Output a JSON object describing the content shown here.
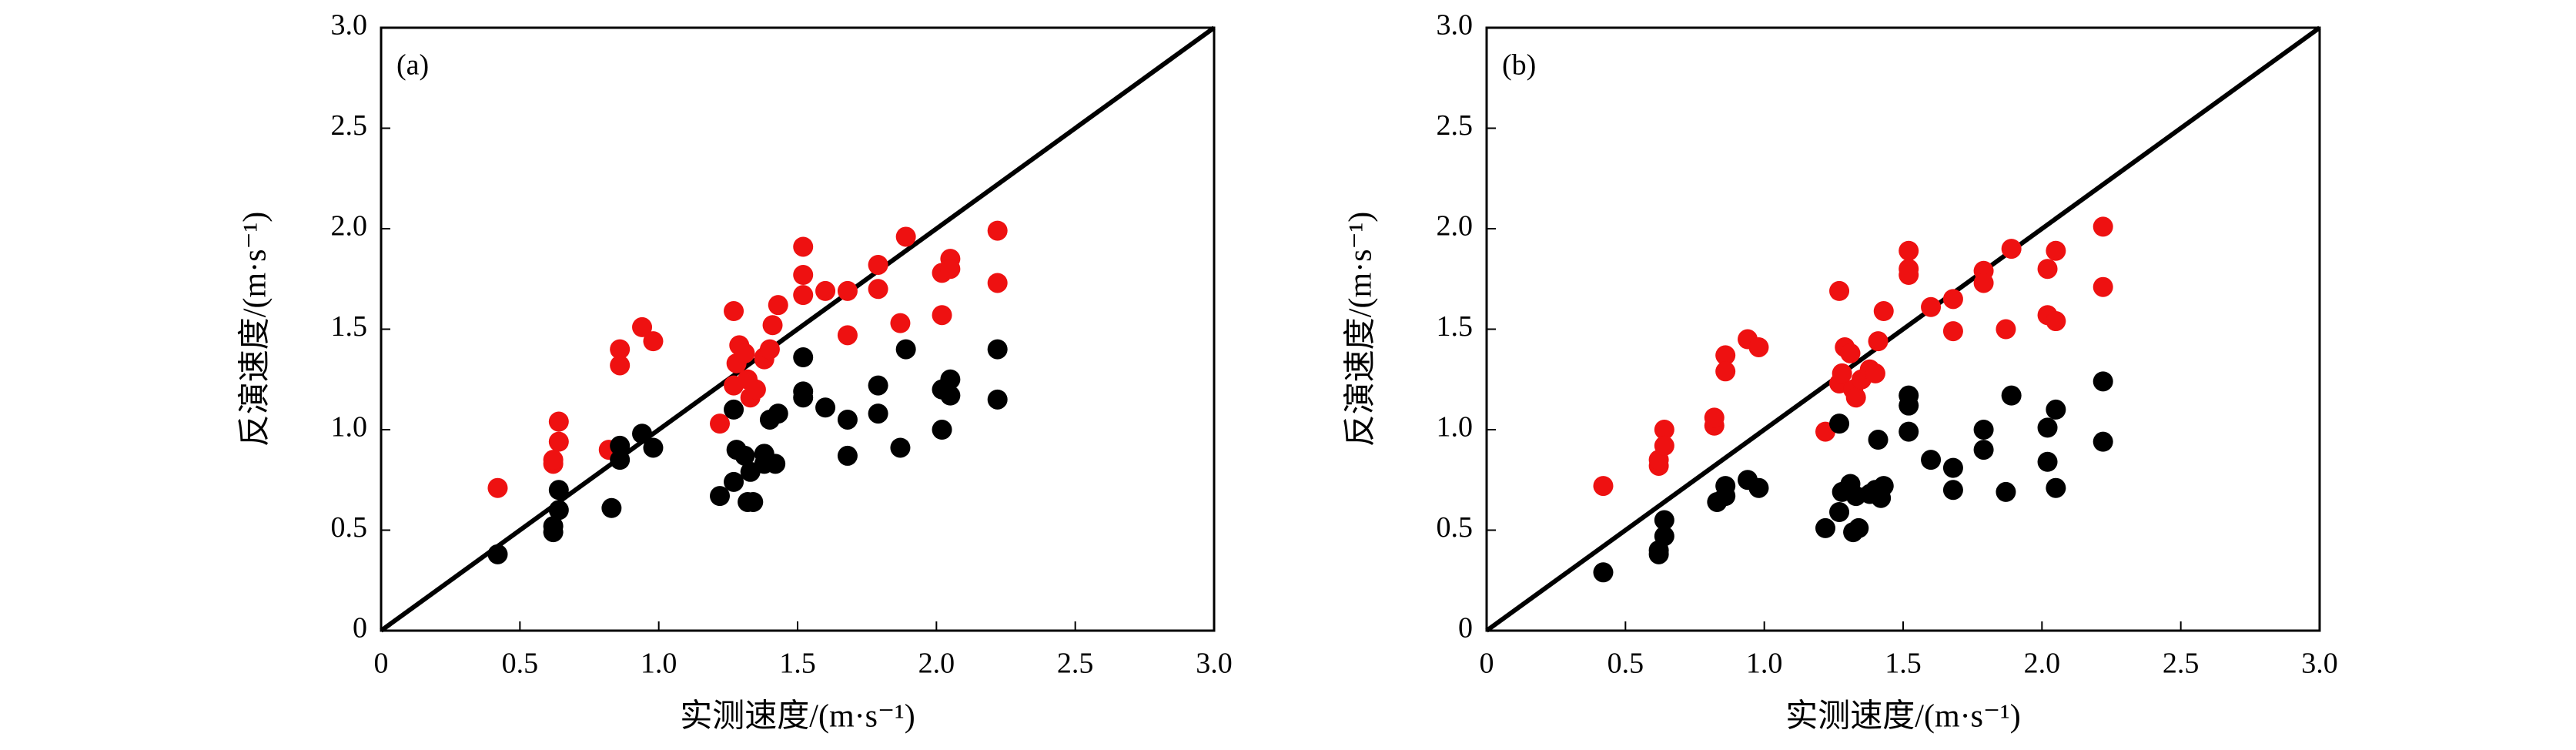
{
  "chart_data": [
    {
      "type": "scatter",
      "annotation": "(a)",
      "xlabel": "实测速度/(m·s⁻¹)",
      "ylabel": "反演速度/(m·s⁻¹)",
      "xlim": [
        0,
        3
      ],
      "ylim": [
        0,
        3
      ],
      "xticks": [
        0,
        0.5,
        {
          "value": 1,
          "label": "1.0"
        },
        1.5,
        {
          "value": 2,
          "label": "2.0"
        },
        2.5,
        {
          "value": 3,
          "label": "3.0"
        }
      ],
      "yticks": [
        0,
        0.5,
        {
          "value": 1,
          "label": "1.0"
        },
        1.5,
        {
          "value": 2,
          "label": "2.0"
        },
        2.5,
        {
          "value": 3,
          "label": "3.0"
        }
      ],
      "series": [
        {
          "color": "#ee1111",
          "x": [
            0.42,
            0.62,
            0.62,
            0.64,
            0.64,
            0.82,
            0.86,
            0.86,
            0.94,
            0.98,
            1.22,
            1.27,
            1.27,
            1.28,
            1.29,
            1.31,
            1.32,
            1.33,
            1.35,
            1.38,
            1.38,
            1.4,
            1.41,
            1.43,
            1.52,
            1.52,
            1.52,
            1.6,
            1.68,
            1.68,
            1.79,
            1.79,
            1.87,
            1.89,
            2.02,
            2.02,
            2.05,
            2.05,
            2.22,
            2.22
          ],
          "values": [
            0.71,
            0.83,
            0.85,
            1.04,
            0.94,
            0.9,
            1.4,
            1.32,
            1.51,
            1.44,
            1.03,
            1.59,
            1.22,
            1.33,
            1.42,
            1.38,
            1.25,
            1.16,
            1.2,
            1.35,
            1.36,
            1.4,
            1.52,
            1.62,
            1.91,
            1.77,
            1.67,
            1.69,
            1.47,
            1.69,
            1.82,
            1.7,
            1.53,
            1.96,
            1.57,
            1.78,
            1.85,
            1.8,
            1.73,
            1.99
          ]
        },
        {
          "color": "#000000",
          "x": [
            0.42,
            0.62,
            0.62,
            0.64,
            0.64,
            0.83,
            0.86,
            0.86,
            0.94,
            0.98,
            1.22,
            1.27,
            1.27,
            1.28,
            1.31,
            1.32,
            1.33,
            1.34,
            1.38,
            1.38,
            1.4,
            1.42,
            1.43,
            1.52,
            1.52,
            1.52,
            1.6,
            1.68,
            1.68,
            1.79,
            1.79,
            1.87,
            1.89,
            2.02,
            2.02,
            2.05,
            2.05,
            2.22,
            2.22
          ],
          "values": [
            0.38,
            0.49,
            0.52,
            0.6,
            0.7,
            0.61,
            0.85,
            0.92,
            0.98,
            0.91,
            0.67,
            1.1,
            0.74,
            0.9,
            0.87,
            0.64,
            0.79,
            0.64,
            0.83,
            0.88,
            1.05,
            0.83,
            1.08,
            1.36,
            1.16,
            1.19,
            1.11,
            1.05,
            0.87,
            1.08,
            1.22,
            0.91,
            1.4,
            1.0,
            1.2,
            1.17,
            1.25,
            1.15,
            1.4
          ]
        }
      ]
    },
    {
      "type": "scatter",
      "annotation": "(b)",
      "xlabel": "实测速度/(m·s⁻¹)",
      "ylabel": "反演速度/(m·s⁻¹)",
      "xlim": [
        0,
        3
      ],
      "ylim": [
        0,
        3
      ],
      "xticks": [
        0,
        0.5,
        {
          "value": 1,
          "label": "1.0"
        },
        1.5,
        {
          "value": 2,
          "label": "2.0"
        },
        2.5,
        {
          "value": 3,
          "label": "3.0"
        }
      ],
      "yticks": [
        0,
        0.5,
        {
          "value": 1,
          "label": "1.0"
        },
        1.5,
        {
          "value": 2,
          "label": "2.0"
        },
        2.5,
        {
          "value": 3,
          "label": "3.0"
        }
      ],
      "series": [
        {
          "color": "#ee1111",
          "x": [
            0.42,
            0.62,
            0.62,
            0.64,
            0.64,
            0.82,
            0.82,
            0.86,
            0.86,
            0.94,
            0.98,
            1.22,
            1.27,
            1.27,
            1.28,
            1.29,
            1.31,
            1.32,
            1.33,
            1.35,
            1.38,
            1.4,
            1.41,
            1.43,
            1.52,
            1.52,
            1.52,
            1.6,
            1.68,
            1.68,
            1.79,
            1.79,
            1.87,
            1.89,
            2.02,
            2.02,
            2.05,
            2.05,
            2.22,
            2.22
          ],
          "values": [
            0.72,
            0.82,
            0.85,
            1.0,
            0.92,
            1.02,
            1.06,
            1.37,
            1.29,
            1.45,
            1.41,
            0.99,
            1.69,
            1.23,
            1.28,
            1.41,
            1.38,
            1.2,
            1.16,
            1.25,
            1.3,
            1.28,
            1.44,
            1.59,
            1.89,
            1.8,
            1.77,
            1.61,
            1.49,
            1.65,
            1.79,
            1.73,
            1.5,
            1.9,
            1.57,
            1.8,
            1.89,
            1.54,
            1.71,
            2.01
          ]
        },
        {
          "color": "#000000",
          "x": [
            0.42,
            0.62,
            0.62,
            0.64,
            0.64,
            0.83,
            0.86,
            0.86,
            0.94,
            0.98,
            1.22,
            1.27,
            1.27,
            1.28,
            1.31,
            1.32,
            1.33,
            1.34,
            1.38,
            1.4,
            1.41,
            1.42,
            1.43,
            1.52,
            1.52,
            1.52,
            1.6,
            1.68,
            1.68,
            1.79,
            1.79,
            1.87,
            1.89,
            2.02,
            2.02,
            2.05,
            2.05,
            2.22,
            2.22
          ],
          "values": [
            0.29,
            0.38,
            0.4,
            0.47,
            0.55,
            0.64,
            0.67,
            0.72,
            0.75,
            0.71,
            0.51,
            1.03,
            0.59,
            0.69,
            0.73,
            0.49,
            0.67,
            0.51,
            0.68,
            0.7,
            0.95,
            0.66,
            0.72,
            1.17,
            1.12,
            0.99,
            0.85,
            0.7,
            0.81,
            0.9,
            1.0,
            0.69,
            1.17,
            0.84,
            1.01,
            1.1,
            0.71,
            0.94,
            1.24
          ]
        }
      ]
    }
  ]
}
